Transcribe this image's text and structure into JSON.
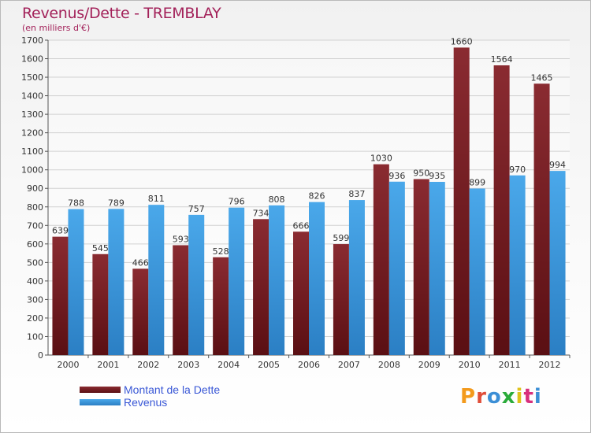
{
  "title": "Revenus/Dette - TREMBLAY",
  "subtitle": "(en milliers d'€)",
  "logo": {
    "text": "Proxiti",
    "letter_colors": [
      "#f39a1c",
      "#e04d38",
      "#3c8fd6",
      "#2bab3b",
      "#e0c21a",
      "#d82f7c",
      "#3c8fd6"
    ]
  },
  "chart_data": {
    "type": "bar",
    "categories": [
      "2000",
      "2001",
      "2002",
      "2003",
      "2004",
      "2005",
      "2006",
      "2007",
      "2008",
      "2009",
      "2010",
      "2011",
      "2012"
    ],
    "series": [
      {
        "name": "Montant de la Dette",
        "color": "#7a1f24",
        "values": [
          639,
          545,
          466,
          593,
          528,
          734,
          666,
          599,
          1030,
          950,
          1660,
          1564,
          1465
        ]
      },
      {
        "name": "Revenus",
        "color": "#3d9ce0",
        "values": [
          788,
          789,
          811,
          757,
          796,
          808,
          826,
          837,
          936,
          935,
          899,
          970,
          994
        ]
      }
    ],
    "ylim": [
      0,
      1700
    ],
    "yticks": [
      0,
      100,
      200,
      300,
      400,
      500,
      600,
      700,
      800,
      900,
      1000,
      1100,
      1200,
      1300,
      1400,
      1500,
      1600,
      1700
    ],
    "grid": true,
    "legend_position": "bottom-left"
  }
}
